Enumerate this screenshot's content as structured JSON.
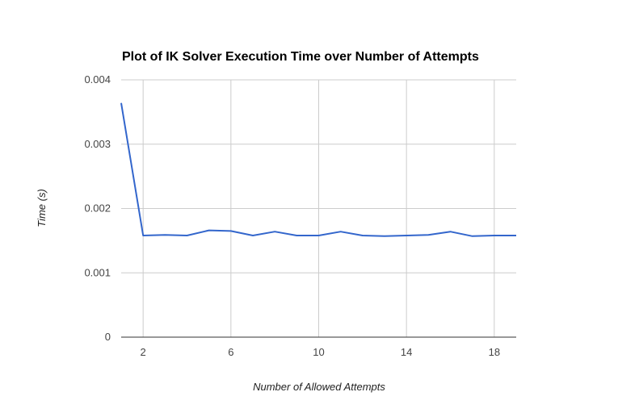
{
  "chart_data": {
    "type": "line",
    "title": "Plot of IK Solver Execution Time over Number of Attempts",
    "xlabel": "Number of Allowed Attempts",
    "ylabel": "Time (s)",
    "xlim": [
      1,
      19
    ],
    "ylim": [
      0,
      0.004
    ],
    "x_ticks": [
      "2",
      "6",
      "10",
      "14",
      "18"
    ],
    "y_ticks": [
      "0",
      "0.001",
      "0.002",
      "0.003",
      "0.004"
    ],
    "grid": true,
    "legend": "none",
    "line_color": "#3366cc",
    "series": [
      {
        "x": [
          1,
          2,
          3,
          4,
          5,
          6,
          7,
          8,
          9,
          10,
          11,
          12,
          13,
          14,
          15,
          16,
          17,
          18,
          19
        ],
        "values": [
          0.00364,
          0.00158,
          0.00159,
          0.00158,
          0.00166,
          0.00165,
          0.00158,
          0.00164,
          0.00158,
          0.00158,
          0.00164,
          0.00158,
          0.00157,
          0.00158,
          0.00159,
          0.00164,
          0.00157,
          0.00158,
          0.00158
        ]
      }
    ]
  }
}
